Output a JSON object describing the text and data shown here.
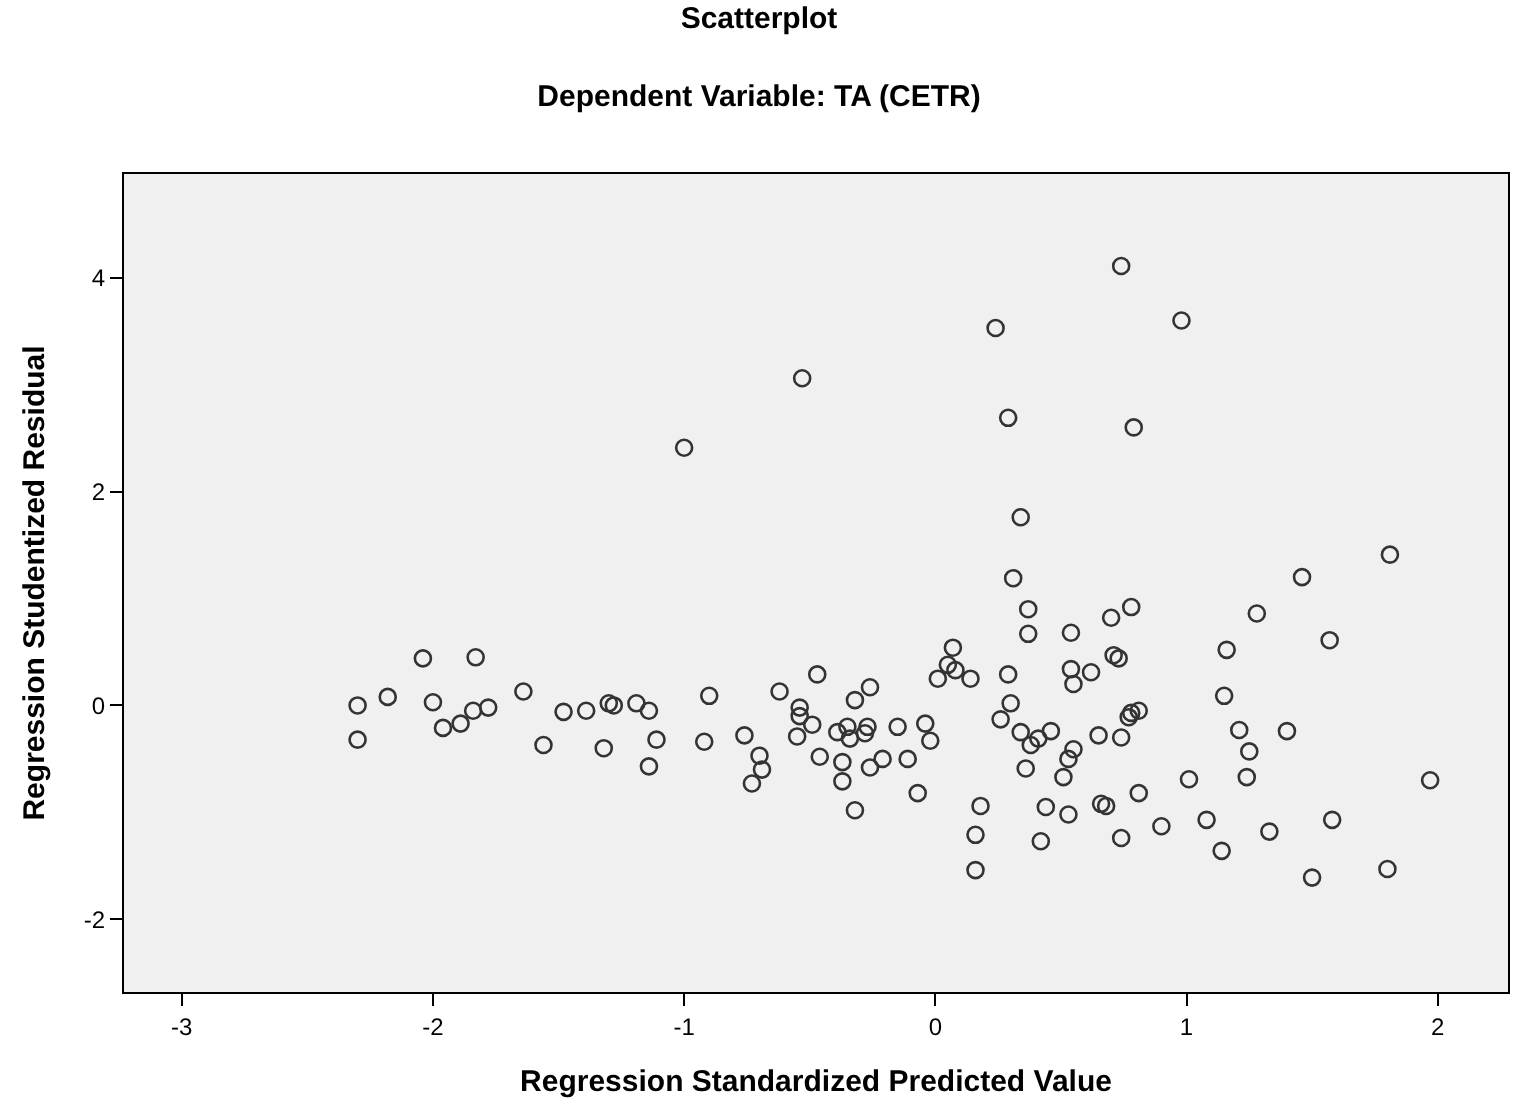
{
  "chart_data": {
    "type": "scatter",
    "title": "Scatterplot",
    "subtitle": "Dependent Variable: TA (CETR)",
    "xlabel": "Regression Standardized Predicted Value",
    "ylabel": "Regression Studentized Residual",
    "marker": "circle",
    "grid": false,
    "xlim": [
      -3.23,
      2.28
    ],
    "ylim": [
      -2.68,
      4.97
    ],
    "xticks": [
      -3,
      -2,
      -1,
      0,
      1,
      2
    ],
    "yticks": [
      -2,
      0,
      2,
      4
    ],
    "series": [
      {
        "color": "#333333",
        "x": [
          -2.3,
          -2.3,
          -2.18,
          -2.04,
          -2.0,
          -1.96,
          -1.89,
          -1.84,
          -1.83,
          -1.78,
          -1.64,
          -1.56,
          -1.48,
          -1.39,
          -1.32,
          -1.3,
          -1.28,
          -1.19,
          -1.14,
          -1.11,
          -1.14,
          -0.92,
          -0.9,
          -0.76,
          -0.7,
          -0.69,
          -0.73,
          -0.62,
          -0.47,
          -0.54,
          -0.54,
          -0.55,
          -0.49,
          -0.46,
          -0.32,
          -0.26,
          -0.39,
          -0.35,
          -0.34,
          -0.27,
          -0.28,
          -0.37,
          -0.37,
          -0.32,
          -0.26,
          -0.21,
          -0.15,
          -0.11,
          -0.07,
          -0.04,
          -0.02,
          0.07,
          0.05,
          0.08,
          0.01,
          0.14,
          0.29,
          0.3,
          0.26,
          0.18,
          0.16,
          0.16,
          0.31,
          0.37,
          0.37,
          0.54,
          0.7,
          0.78,
          0.71,
          0.73,
          0.54,
          0.62,
          0.55,
          0.34,
          0.41,
          0.38,
          0.46,
          0.55,
          0.53,
          0.51,
          0.36,
          0.65,
          0.74,
          0.77,
          0.78,
          0.81,
          0.44,
          0.53,
          0.66,
          0.68,
          0.81,
          0.42,
          0.74,
          0.9,
          1.01,
          1.08,
          1.14,
          1.16,
          1.15,
          1.81,
          1.46,
          1.28,
          1.57,
          1.21,
          1.4,
          1.25,
          1.24,
          1.97,
          1.33,
          1.58,
          1.5,
          1.8,
          -1.0,
          -0.53,
          0.24,
          0.74,
          0.98,
          0.29,
          0.79,
          0.34
        ],
        "values": [
          0.0,
          -0.32,
          0.08,
          0.44,
          0.03,
          -0.21,
          -0.17,
          -0.05,
          0.45,
          -0.02,
          0.13,
          -0.37,
          -0.06,
          -0.05,
          -0.4,
          0.02,
          0.0,
          0.02,
          -0.05,
          -0.32,
          -0.57,
          -0.34,
          0.09,
          -0.28,
          -0.47,
          -0.6,
          -0.73,
          0.13,
          0.29,
          -0.02,
          -0.1,
          -0.29,
          -0.18,
          -0.48,
          0.05,
          0.17,
          -0.25,
          -0.2,
          -0.31,
          -0.2,
          -0.26,
          -0.53,
          -0.71,
          -0.98,
          -0.58,
          -0.5,
          -0.2,
          -0.5,
          -0.82,
          -0.17,
          -0.33,
          0.54,
          0.38,
          0.33,
          0.25,
          0.25,
          0.29,
          0.02,
          -0.13,
          -0.94,
          -1.21,
          -1.54,
          1.19,
          0.9,
          0.67,
          0.68,
          0.82,
          0.92,
          0.47,
          0.44,
          0.34,
          0.31,
          0.2,
          -0.25,
          -0.31,
          -0.37,
          -0.24,
          -0.41,
          -0.5,
          -0.67,
          -0.59,
          -0.28,
          -0.3,
          -0.11,
          -0.07,
          -0.05,
          -0.95,
          -1.02,
          -0.92,
          -0.94,
          -0.82,
          -1.27,
          -1.24,
          -1.13,
          -0.69,
          -1.07,
          -1.36,
          0.52,
          0.09,
          1.41,
          1.2,
          0.86,
          0.61,
          -0.23,
          -0.24,
          -0.43,
          -0.67,
          -0.7,
          -1.18,
          -1.07,
          -1.61,
          -1.53,
          2.41,
          3.06,
          3.53,
          4.11,
          3.6,
          2.69,
          2.6,
          1.76
        ]
      }
    ]
  }
}
